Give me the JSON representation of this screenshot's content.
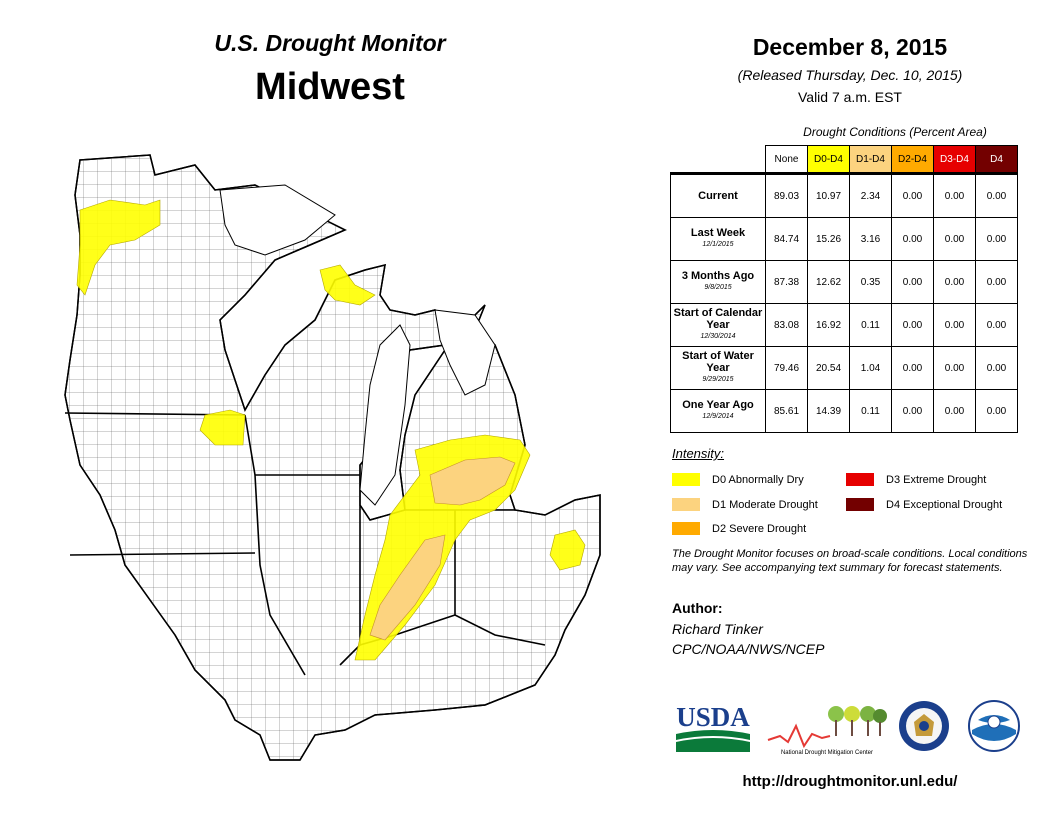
{
  "header": {
    "brand": "U.S. Drought Monitor",
    "region": "Midwest",
    "date": "December 8, 2015",
    "released": "(Released Thursday, Dec. 10, 2015)",
    "valid": "Valid  7 a.m. EST"
  },
  "table": {
    "caption": "Drought Conditions (Percent Area)",
    "columns": [
      "None",
      "D0-D4",
      "D1-D4",
      "D2-D4",
      "D3-D4",
      "D4"
    ],
    "column_colors": [
      "#ffffff",
      "#ffff00",
      "#fcd37f",
      "#ffaa00",
      "#e60000",
      "#730000"
    ],
    "rows": [
      {
        "label": "Current",
        "sub": "",
        "values": [
          "89.03",
          "10.97",
          "2.34",
          "0.00",
          "0.00",
          "0.00"
        ]
      },
      {
        "label": "Last Week",
        "sub": "12/1/2015",
        "values": [
          "84.74",
          "15.26",
          "3.16",
          "0.00",
          "0.00",
          "0.00"
        ]
      },
      {
        "label": "3 Months Ago",
        "sub": "9/8/2015",
        "values": [
          "87.38",
          "12.62",
          "0.35",
          "0.00",
          "0.00",
          "0.00"
        ]
      },
      {
        "label": "Start of Calendar Year",
        "sub": "12/30/2014",
        "values": [
          "83.08",
          "16.92",
          "0.11",
          "0.00",
          "0.00",
          "0.00"
        ]
      },
      {
        "label": "Start of Water Year",
        "sub": "9/29/2015",
        "values": [
          "79.46",
          "20.54",
          "1.04",
          "0.00",
          "0.00",
          "0.00"
        ]
      },
      {
        "label": "One Year Ago",
        "sub": "12/9/2014",
        "values": [
          "85.61",
          "14.39",
          "0.11",
          "0.00",
          "0.00",
          "0.00"
        ]
      }
    ]
  },
  "legend": {
    "title": "Intensity:",
    "items": [
      {
        "label": "D0 Abnormally Dry",
        "color": "#ffff00"
      },
      {
        "label": "D1 Moderate Drought",
        "color": "#fcd37f"
      },
      {
        "label": "D2 Severe Drought",
        "color": "#ffaa00"
      },
      {
        "label": "D3 Extreme Drought",
        "color": "#e60000"
      },
      {
        "label": "D4 Exceptional Drought",
        "color": "#730000"
      }
    ]
  },
  "note": "The Drought Monitor focuses on broad-scale conditions. Local conditions may vary. See accompanying text summary for forecast statements.",
  "author": {
    "label": "Author:",
    "name": "Richard Tinker",
    "org": "CPC/NOAA/NWS/NCEP"
  },
  "logos": {
    "usda": "USDA",
    "ndmc": "National Drought Mitigation Center"
  },
  "url": "http://droughtmonitor.unl.edu/",
  "map": {
    "region_fill": "#ffffff",
    "border_color": "#000000",
    "county_line_color": "#444444"
  }
}
